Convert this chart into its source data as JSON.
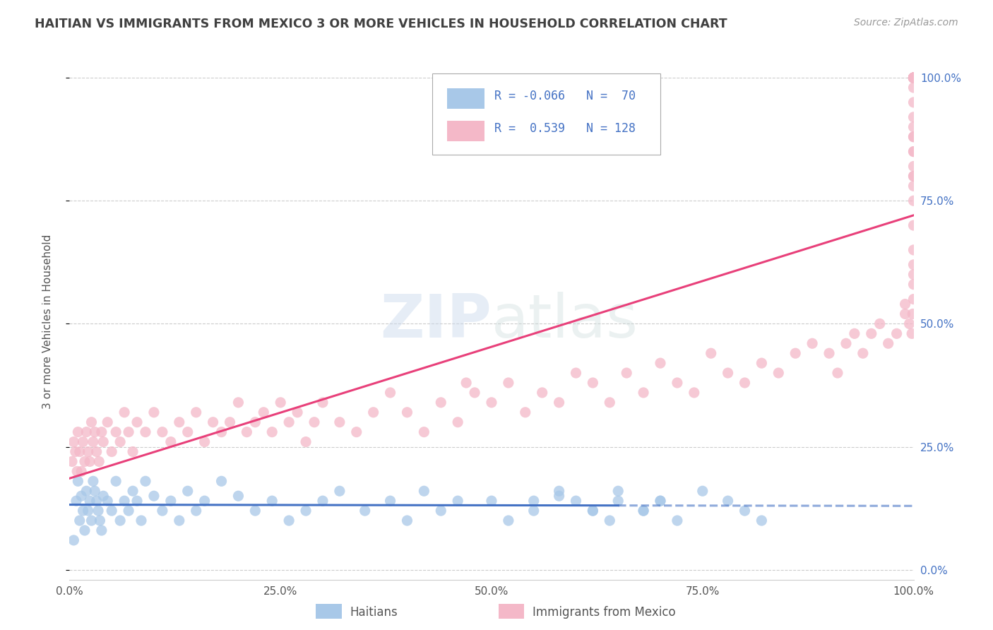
{
  "title": "HAITIAN VS IMMIGRANTS FROM MEXICO 3 OR MORE VEHICLES IN HOUSEHOLD CORRELATION CHART",
  "source": "Source: ZipAtlas.com",
  "ylabel": "3 or more Vehicles in Household",
  "xlim": [
    0,
    100
  ],
  "ylim": [
    -2,
    103
  ],
  "haitian_color": "#a8c8e8",
  "haitian_line_color": "#4472c4",
  "mexico_color": "#f4b8c8",
  "mexico_line_color": "#e8407a",
  "R_haitian": -0.066,
  "N_haitian": 70,
  "R_mexico": 0.539,
  "N_mexico": 128,
  "ytick_labels_right": [
    "0.0%",
    "25.0%",
    "50.0%",
    "75.0%",
    "100.0%"
  ],
  "ytick_values_right": [
    0,
    25,
    50,
    75,
    100
  ],
  "xtick_labels": [
    "0.0%",
    "25.0%",
    "50.0%",
    "75.0%",
    "100.0%"
  ],
  "xtick_values": [
    0,
    25,
    50,
    75,
    100
  ],
  "background_color": "#ffffff",
  "grid_color": "#cccccc",
  "title_color": "#404040",
  "watermark": "ZIPatlas",
  "haitian_x": [
    0.5,
    0.8,
    1.0,
    1.2,
    1.4,
    1.6,
    1.8,
    2.0,
    2.2,
    2.4,
    2.6,
    2.8,
    3.0,
    3.2,
    3.4,
    3.6,
    3.8,
    4.0,
    4.5,
    5.0,
    5.5,
    6.0,
    6.5,
    7.0,
    7.5,
    8.0,
    8.5,
    9.0,
    10.0,
    11.0,
    12.0,
    13.0,
    14.0,
    15.0,
    16.0,
    18.0,
    20.0,
    22.0,
    24.0,
    26.0,
    28.0,
    30.0,
    32.0,
    35.0,
    38.0,
    40.0,
    42.0,
    44.0,
    46.0,
    50.0,
    52.0,
    55.0,
    58.0,
    60.0,
    62.0,
    64.0,
    65.0,
    68.0,
    70.0,
    55.0,
    58.0,
    62.0,
    65.0,
    68.0,
    70.0,
    72.0,
    75.0,
    78.0,
    80.0,
    82.0
  ],
  "haitian_y": [
    6,
    14,
    18,
    10,
    15,
    12,
    8,
    16,
    12,
    14,
    10,
    18,
    16,
    14,
    12,
    10,
    8,
    15,
    14,
    12,
    18,
    10,
    14,
    12,
    16,
    14,
    10,
    18,
    15,
    12,
    14,
    10,
    16,
    12,
    14,
    18,
    15,
    12,
    14,
    10,
    12,
    14,
    16,
    12,
    14,
    10,
    16,
    12,
    14,
    14,
    10,
    12,
    16,
    14,
    12,
    10,
    16,
    12,
    14,
    14,
    15,
    12,
    14,
    12,
    14,
    10,
    16,
    14,
    12,
    10
  ],
  "mexico_x": [
    0.3,
    0.5,
    0.7,
    0.9,
    1.0,
    1.2,
    1.4,
    1.6,
    1.8,
    2.0,
    2.2,
    2.4,
    2.6,
    2.8,
    3.0,
    3.2,
    3.5,
    3.8,
    4.0,
    4.5,
    5.0,
    5.5,
    6.0,
    6.5,
    7.0,
    7.5,
    8.0,
    9.0,
    10.0,
    11.0,
    12.0,
    13.0,
    14.0,
    15.0,
    16.0,
    17.0,
    18.0,
    19.0,
    20.0,
    21.0,
    22.0,
    23.0,
    24.0,
    25.0,
    26.0,
    27.0,
    28.0,
    29.0,
    30.0,
    32.0,
    34.0,
    36.0,
    38.0,
    40.0,
    42.0,
    44.0,
    46.0,
    47.0,
    48.0,
    50.0,
    52.0,
    54.0,
    56.0,
    58.0,
    60.0,
    62.0,
    64.0,
    66.0,
    68.0,
    70.0,
    72.0,
    74.0,
    76.0,
    78.0,
    80.0,
    82.0,
    84.0,
    86.0,
    88.0,
    90.0,
    91.0,
    92.0,
    93.0,
    94.0,
    95.0,
    96.0,
    97.0,
    98.0,
    99.0,
    99.0,
    99.5,
    99.8,
    99.9,
    100.0,
    100.0,
    100.0,
    100.0,
    100.0,
    100.0,
    100.0,
    100.0,
    100.0,
    100.0,
    100.0,
    100.0,
    100.0,
    100.0,
    100.0,
    100.0,
    100.0,
    100.0,
    100.0,
    100.0,
    100.0,
    100.0,
    100.0,
    100.0,
    100.0,
    100.0,
    100.0,
    100.0,
    100.0,
    100.0,
    100.0,
    100.0,
    100.0,
    100.0,
    100.0
  ],
  "mexico_y": [
    22,
    26,
    24,
    20,
    28,
    24,
    20,
    26,
    22,
    28,
    24,
    22,
    30,
    26,
    28,
    24,
    22,
    28,
    26,
    30,
    24,
    28,
    26,
    32,
    28,
    24,
    30,
    28,
    32,
    28,
    26,
    30,
    28,
    32,
    26,
    30,
    28,
    30,
    34,
    28,
    30,
    32,
    28,
    34,
    30,
    32,
    26,
    30,
    34,
    30,
    28,
    32,
    36,
    32,
    28,
    34,
    30,
    38,
    36,
    34,
    38,
    32,
    36,
    34,
    40,
    38,
    34,
    40,
    36,
    42,
    38,
    36,
    44,
    40,
    38,
    42,
    40,
    44,
    46,
    44,
    40,
    46,
    48,
    44,
    48,
    50,
    46,
    48,
    52,
    54,
    50,
    48,
    52,
    55,
    60,
    58,
    62,
    65,
    70,
    75,
    78,
    80,
    85,
    88,
    80,
    82,
    85,
    88,
    90,
    92,
    95,
    98,
    100,
    100,
    100,
    100,
    100,
    100,
    100,
    100,
    100,
    100,
    100,
    100,
    100,
    100,
    100,
    100
  ]
}
